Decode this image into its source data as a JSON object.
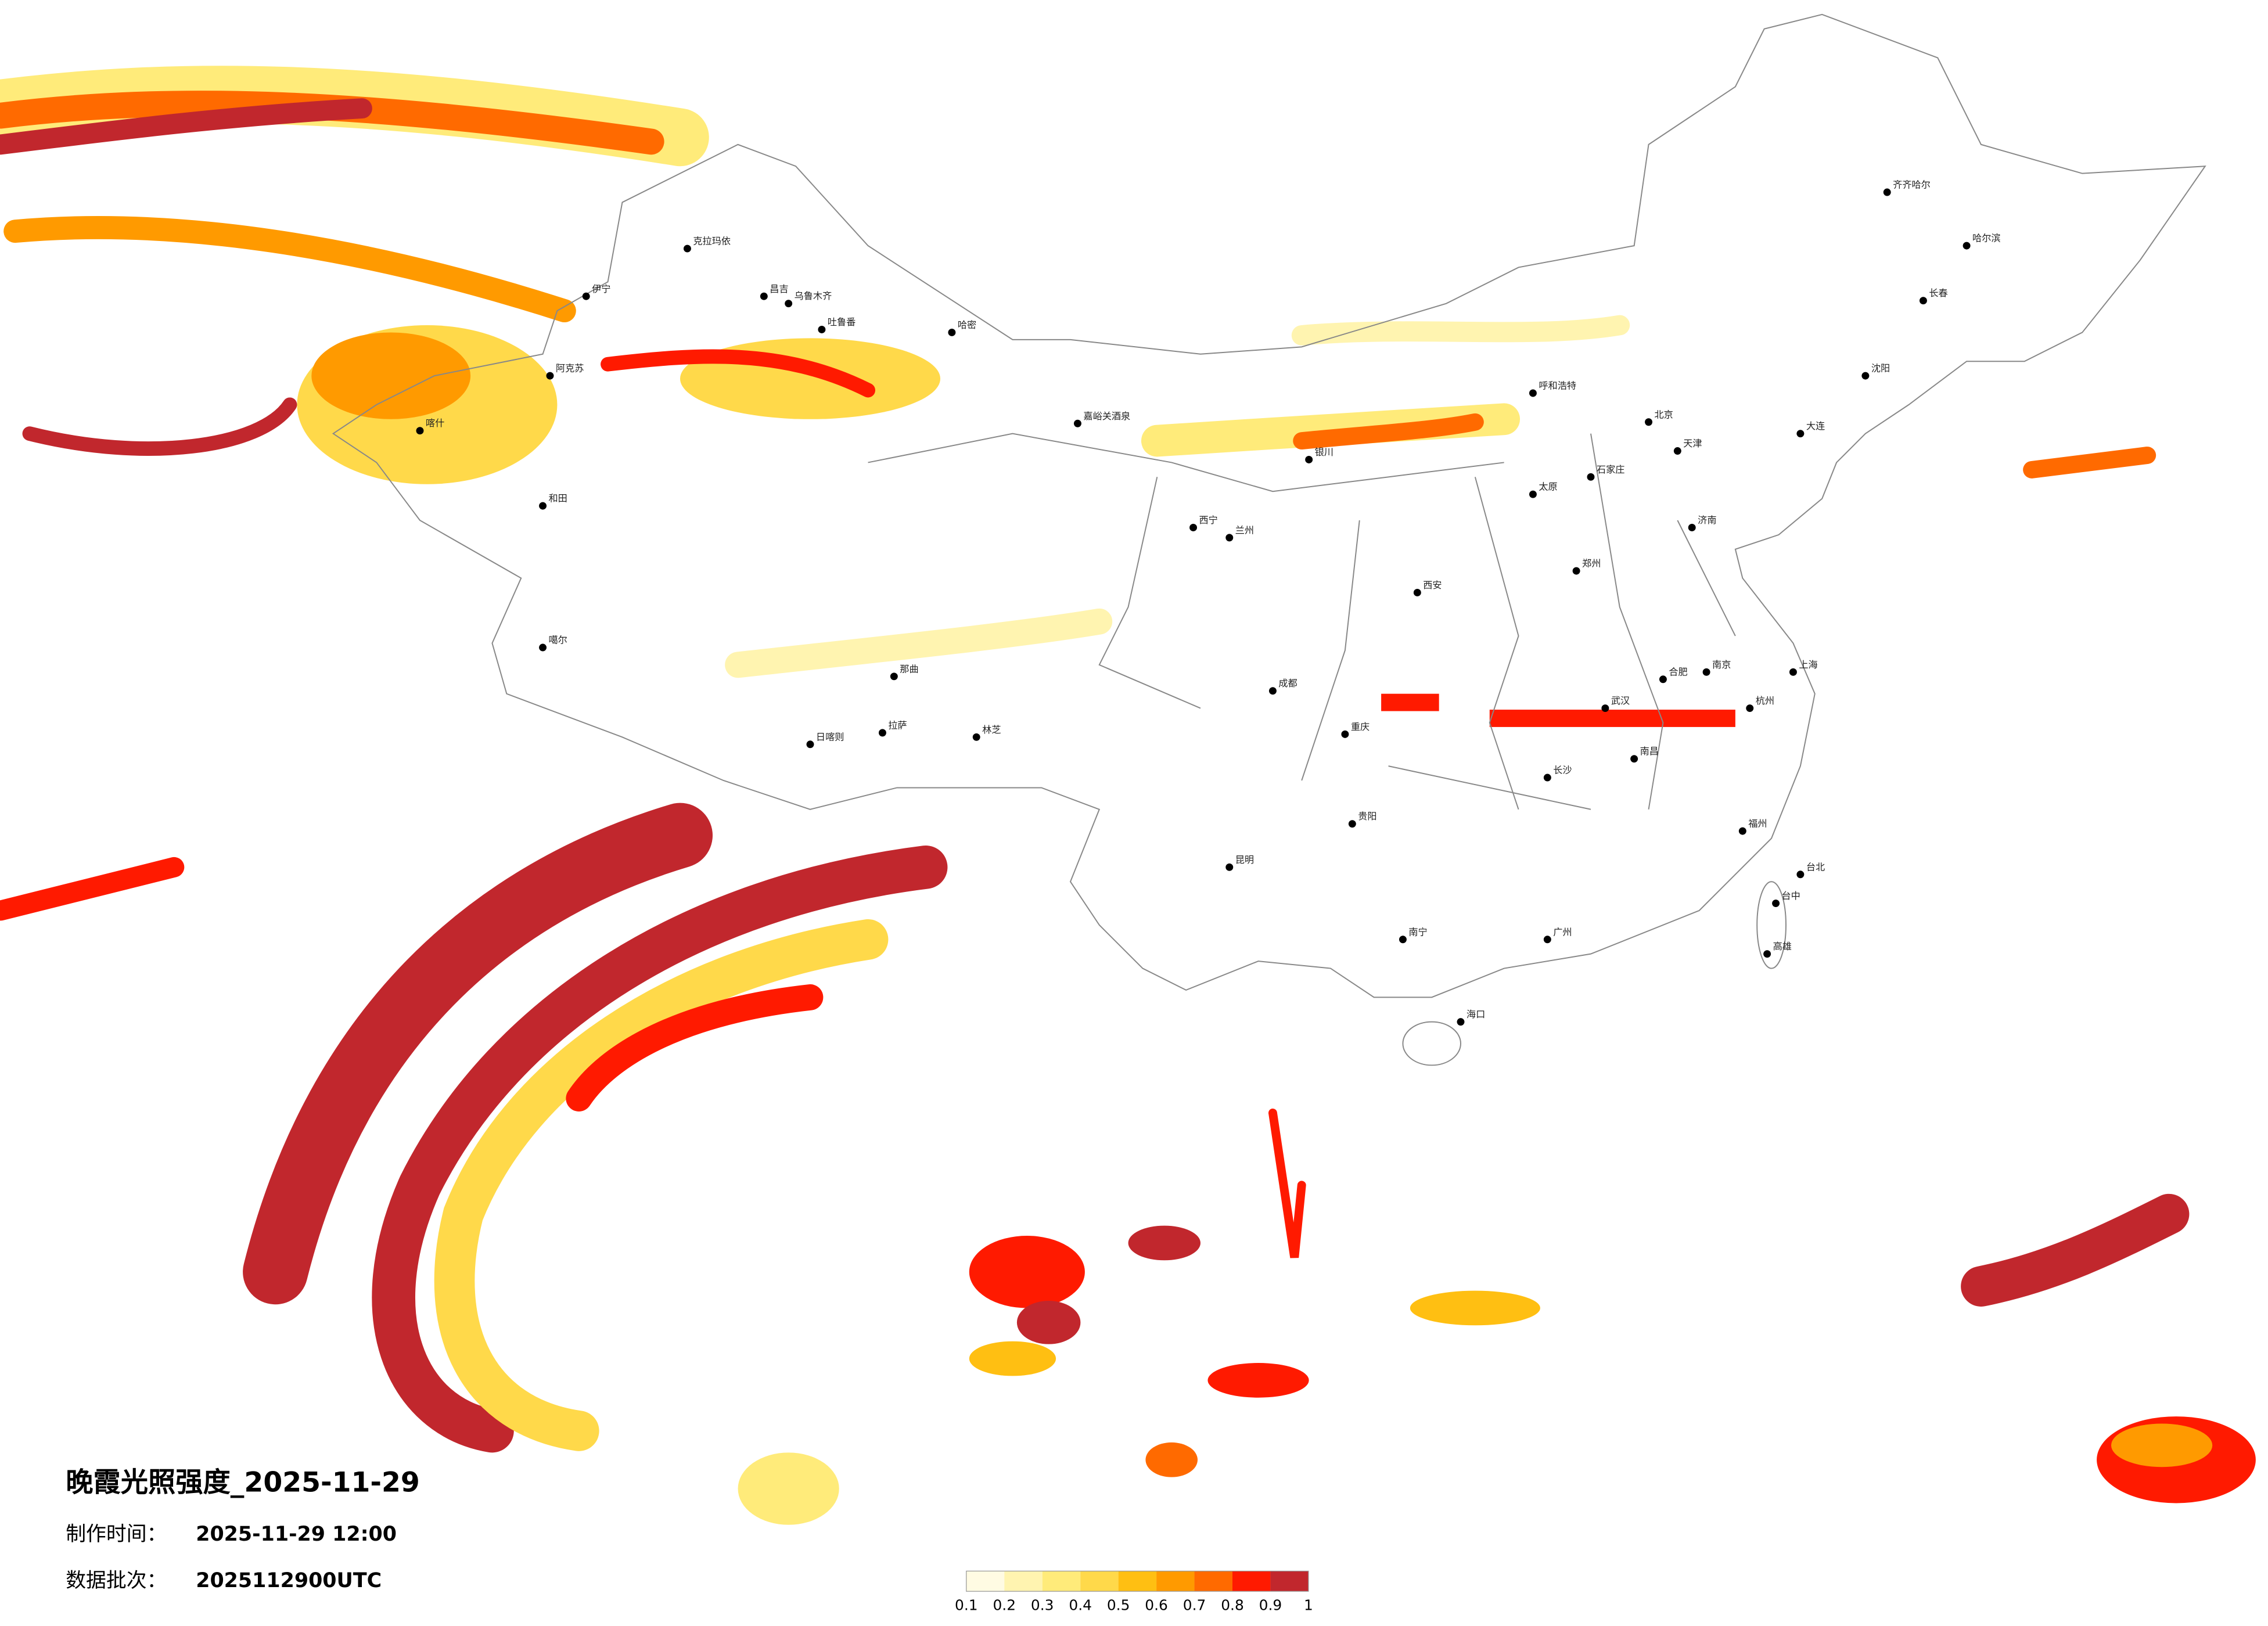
{
  "title": "晚霞光照强度_2025-11-29",
  "made_time": {
    "label": "制作时间：",
    "value": "2025-11-29 12:00"
  },
  "batch": {
    "label": "数据批次：",
    "value": "2025112900UTC"
  },
  "colorbar": {
    "colors": [
      "#fffbe3",
      "#fff4b0",
      "#ffeb7a",
      "#ffd94a",
      "#ffbf12",
      "#ff9a00",
      "#ff6a00",
      "#ff1a00",
      "#c1272d"
    ],
    "ticks": [
      0.1,
      0.2,
      0.3,
      0.4,
      0.5,
      0.6,
      0.7,
      0.8,
      0.9,
      1
    ]
  },
  "cities": [
    "伊宁",
    "克拉玛依",
    "昌吉",
    "乌鲁木齐",
    "吐鲁番",
    "哈密",
    "阿克苏",
    "喀什",
    "和田",
    "噶尔",
    "日喀则",
    "拉萨",
    "林芝",
    "那曲",
    "嘉峪关酒泉",
    "西宁",
    "兰州",
    "银川",
    "呼和浩特",
    "北京",
    "天津",
    "石家庄",
    "太原",
    "济南",
    "郑州",
    "西安",
    "武汉",
    "长沙",
    "南昌",
    "杭州",
    "上海",
    "南京",
    "合肥",
    "福州",
    "广州",
    "南宁",
    "贵阳",
    "昆明",
    "成都",
    "重庆",
    "海口",
    "哈尔滨",
    "长春",
    "沈阳",
    "大连",
    "齐齐哈尔",
    "台北",
    "台中",
    "高雄"
  ]
}
